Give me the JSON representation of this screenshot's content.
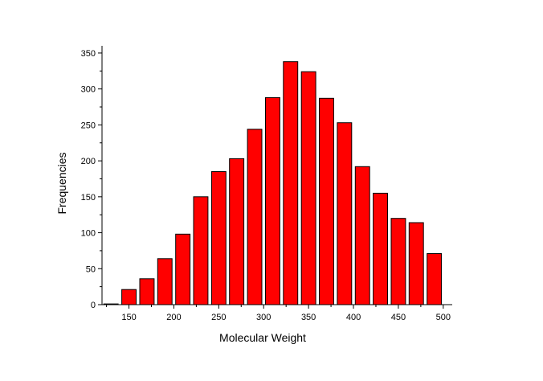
{
  "chart_data": {
    "type": "bar",
    "xlabel": "Molecular Weight",
    "ylabel": "Frequencies",
    "bar_color": "#ff0000",
    "bar_edge_color": "#000000",
    "bin_width": 20,
    "x": [
      130,
      150,
      170,
      190,
      210,
      230,
      250,
      270,
      290,
      310,
      330,
      350,
      370,
      390,
      410,
      430,
      450,
      470,
      490
    ],
    "values": [
      1,
      21,
      36,
      64,
      98,
      150,
      185,
      203,
      244,
      288,
      338,
      324,
      287,
      253,
      192,
      155,
      120,
      114,
      71
    ],
    "xlim": [
      120,
      510
    ],
    "ylim": [
      0,
      360
    ],
    "x_ticks": [
      150,
      200,
      250,
      300,
      350,
      400,
      450,
      500
    ],
    "y_ticks": [
      0,
      50,
      100,
      150,
      200,
      250,
      300,
      350
    ],
    "grid": false,
    "legend": "none"
  }
}
